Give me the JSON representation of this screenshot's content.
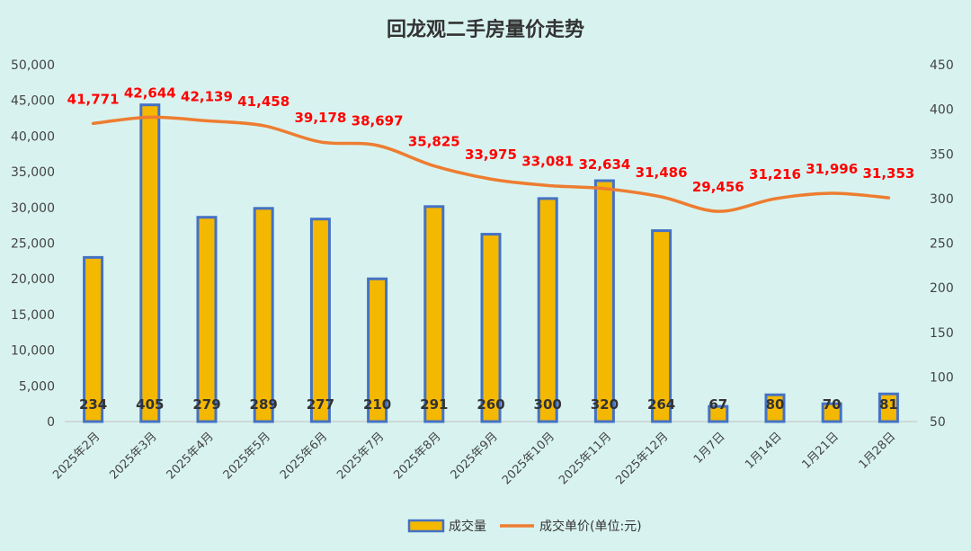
{
  "chart_data": {
    "type": "bar",
    "title": "回龙观二手房量价走势",
    "categories": [
      "2025年2月",
      "2025年3月",
      "2025年4月",
      "2025年5月",
      "2025年6月",
      "2025年7月",
      "2025年8月",
      "2025年9月",
      "2025年10月",
      "2025年11月",
      "2025年12月",
      "1月7日",
      "1月14日",
      "1月21日",
      "1月28日"
    ],
    "series": [
      {
        "name": "成交量",
        "axis": "right",
        "values": [
          234,
          405,
          279,
          289,
          277,
          210,
          291,
          260,
          300,
          320,
          264,
          67,
          80,
          70,
          81
        ],
        "labels": [
          "234",
          "405",
          "279",
          "289",
          "277",
          "210",
          "291",
          "260",
          "300",
          "320",
          "264",
          "67",
          "80",
          "70",
          "81"
        ],
        "color": "#f5b800",
        "border_color": "#4472c4"
      },
      {
        "name": "成交单价(单位:元)",
        "axis": "left",
        "values": [
          41771,
          42644,
          42139,
          41458,
          39178,
          38697,
          35825,
          33975,
          33081,
          32634,
          31486,
          29456,
          31216,
          31996,
          31353
        ],
        "labels": [
          "41,771",
          "42,644",
          "42,139",
          "41,458",
          "39,178",
          "38,697",
          "35,825",
          "33,975",
          "33,081",
          "32,634",
          "31,486",
          "29,456",
          "31,216",
          "31,996",
          "31,353"
        ],
        "color": "#ed7d31",
        "label_color": "#ff0000"
      }
    ],
    "y_left": {
      "min": 0,
      "max": 50000,
      "step": 5000,
      "ticks": [
        "0",
        "5,000",
        "10,000",
        "15,000",
        "20,000",
        "25,000",
        "30,000",
        "35,000",
        "40,000",
        "45,000",
        "50,000"
      ]
    },
    "y_right": {
      "min": 50,
      "max": 450,
      "step": 50,
      "ticks": [
        "50",
        "100",
        "150",
        "200",
        "250",
        "300",
        "350",
        "400",
        "450"
      ]
    },
    "grid": false,
    "legend_position": "bottom"
  }
}
